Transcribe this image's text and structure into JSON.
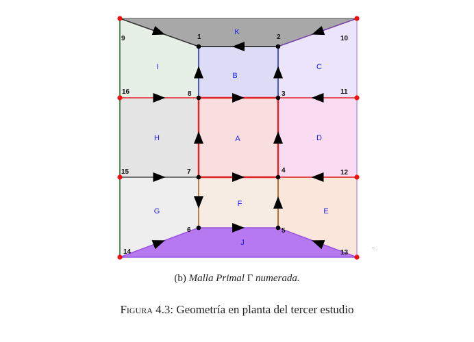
{
  "nodes": [
    {
      "id": "1",
      "label": "1"
    },
    {
      "id": "2",
      "label": "2"
    },
    {
      "id": "3",
      "label": "3"
    },
    {
      "id": "4",
      "label": "4"
    },
    {
      "id": "5",
      "label": "5"
    },
    {
      "id": "6",
      "label": "6"
    },
    {
      "id": "7",
      "label": "7"
    },
    {
      "id": "8",
      "label": "8"
    },
    {
      "id": "9",
      "label": "9"
    },
    {
      "id": "10",
      "label": "10"
    },
    {
      "id": "11",
      "label": "11"
    },
    {
      "id": "12",
      "label": "12"
    },
    {
      "id": "13",
      "label": "13"
    },
    {
      "id": "14",
      "label": "14"
    },
    {
      "id": "15",
      "label": "15"
    },
    {
      "id": "16",
      "label": "16"
    }
  ],
  "regions": [
    {
      "id": "A",
      "label": "A",
      "fill": "#f8dede"
    },
    {
      "id": "B",
      "label": "B",
      "fill": "#dcdcf6"
    },
    {
      "id": "C",
      "label": "C",
      "fill": "#ece4fa"
    },
    {
      "id": "D",
      "label": "D",
      "fill": "#fadcf2"
    },
    {
      "id": "E",
      "label": "E",
      "fill": "#fbe6dc"
    },
    {
      "id": "F",
      "label": "F",
      "fill": "#f6ece4"
    },
    {
      "id": "G",
      "label": "G",
      "fill": "#eeeeee"
    },
    {
      "id": "H",
      "label": "H",
      "fill": "#e4e4e4"
    },
    {
      "id": "I",
      "label": "I",
      "fill": "#e6f0e6"
    },
    {
      "id": "J",
      "label": "J",
      "fill": "#b779f0"
    },
    {
      "id": "K",
      "label": "K",
      "fill": "#a8a8a8"
    }
  ],
  "edges": [
    {
      "id": "9-1",
      "from": "9",
      "to": "1",
      "arrow": "forward"
    },
    {
      "id": "10-2",
      "from": "10",
      "to": "2",
      "arrow": "forward"
    },
    {
      "id": "2-1",
      "from": "2",
      "to": "1",
      "arrow": "forward"
    },
    {
      "id": "8-1",
      "from": "8",
      "to": "1",
      "arrow": "forward"
    },
    {
      "id": "3-2",
      "from": "3",
      "to": "2",
      "arrow": "forward"
    },
    {
      "id": "16-8",
      "from": "16",
      "to": "8",
      "arrow": "forward"
    },
    {
      "id": "8-3",
      "from": "8",
      "to": "3",
      "arrow": "forward"
    },
    {
      "id": "11-3",
      "from": "11",
      "to": "3",
      "arrow": "forward"
    },
    {
      "id": "7-8",
      "from": "7",
      "to": "8",
      "arrow": "forward"
    },
    {
      "id": "4-3",
      "from": "4",
      "to": "3",
      "arrow": "forward"
    },
    {
      "id": "15-7",
      "from": "15",
      "to": "7",
      "arrow": "forward"
    },
    {
      "id": "7-4",
      "from": "7",
      "to": "4",
      "arrow": "forward"
    },
    {
      "id": "12-4",
      "from": "12",
      "to": "4",
      "arrow": "forward"
    },
    {
      "id": "7-6",
      "from": "7",
      "to": "6",
      "arrow": "forward"
    },
    {
      "id": "5-4",
      "from": "5",
      "to": "4",
      "arrow": "forward"
    },
    {
      "id": "6-5",
      "from": "6",
      "to": "5",
      "arrow": "forward"
    },
    {
      "id": "14-6",
      "from": "14",
      "to": "6",
      "arrow": "forward"
    },
    {
      "id": "13-5",
      "from": "13",
      "to": "5",
      "arrow": "forward"
    },
    {
      "id": "9-10",
      "from": "9",
      "to": "10",
      "arrow": "none"
    },
    {
      "id": "14-13",
      "from": "14",
      "to": "13",
      "arrow": "none"
    },
    {
      "id": "9-14",
      "from": "9",
      "to": "14",
      "arrow": "none"
    },
    {
      "id": "10-13",
      "from": "10",
      "to": "13",
      "arrow": "none"
    },
    {
      "id": "4-5",
      "from": "4",
      "to": "5",
      "arrow": "none"
    }
  ],
  "dot": ".",
  "caption_sub": {
    "prefix": "(b) ",
    "italic_text": "Malla Primal",
    "gamma": " Γ ",
    "italic_text2": "numerada."
  },
  "caption_main": {
    "figure_word": "Figura",
    "number": " 4.3: ",
    "text": "Geometría en planta del tercer estudio"
  }
}
